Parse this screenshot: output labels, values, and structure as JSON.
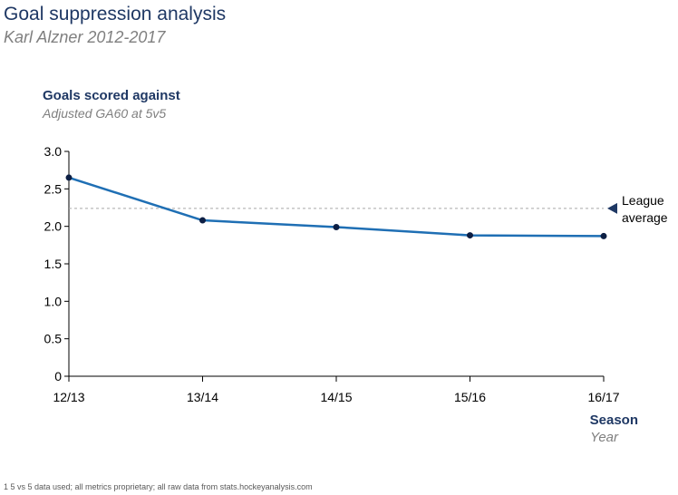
{
  "header": {
    "title": "Goal suppression analysis",
    "subtitle": "Karl Alzner 2012-2017"
  },
  "footnote": "1 5 vs 5 data used; all metrics proprietary; all raw data from stats.hockeyanalysis.com",
  "chart_data": {
    "type": "line",
    "title": "Goals scored against",
    "ylabel": "Goals scored against",
    "ylabel_sub": "Adjusted GA60 at 5v5",
    "xlabel": "Season",
    "xlabel_sub": "Year",
    "categories": [
      "12/13",
      "13/14",
      "14/15",
      "15/16",
      "16/17"
    ],
    "series": [
      {
        "name": "Karl Alzner",
        "values": [
          2.65,
          2.08,
          1.99,
          1.88,
          1.87
        ]
      }
    ],
    "ylim": [
      0,
      3.0
    ],
    "yticks": [
      0,
      0.5,
      1.0,
      1.5,
      2.0,
      2.5,
      3.0
    ],
    "ytick_labels": [
      "0",
      "0.5",
      "1.0",
      "1.5",
      "2.0",
      "2.5",
      "3.0"
    ],
    "reference_line": {
      "value": 2.24,
      "label_lines": [
        "League",
        "average"
      ],
      "style": "dotted"
    },
    "colors": {
      "line": "#1f6fb4",
      "marker": "#0d1f44",
      "axis": "#000000",
      "reference": "#a6a6a6",
      "reference_marker": "#1f3864"
    },
    "grid": false
  }
}
